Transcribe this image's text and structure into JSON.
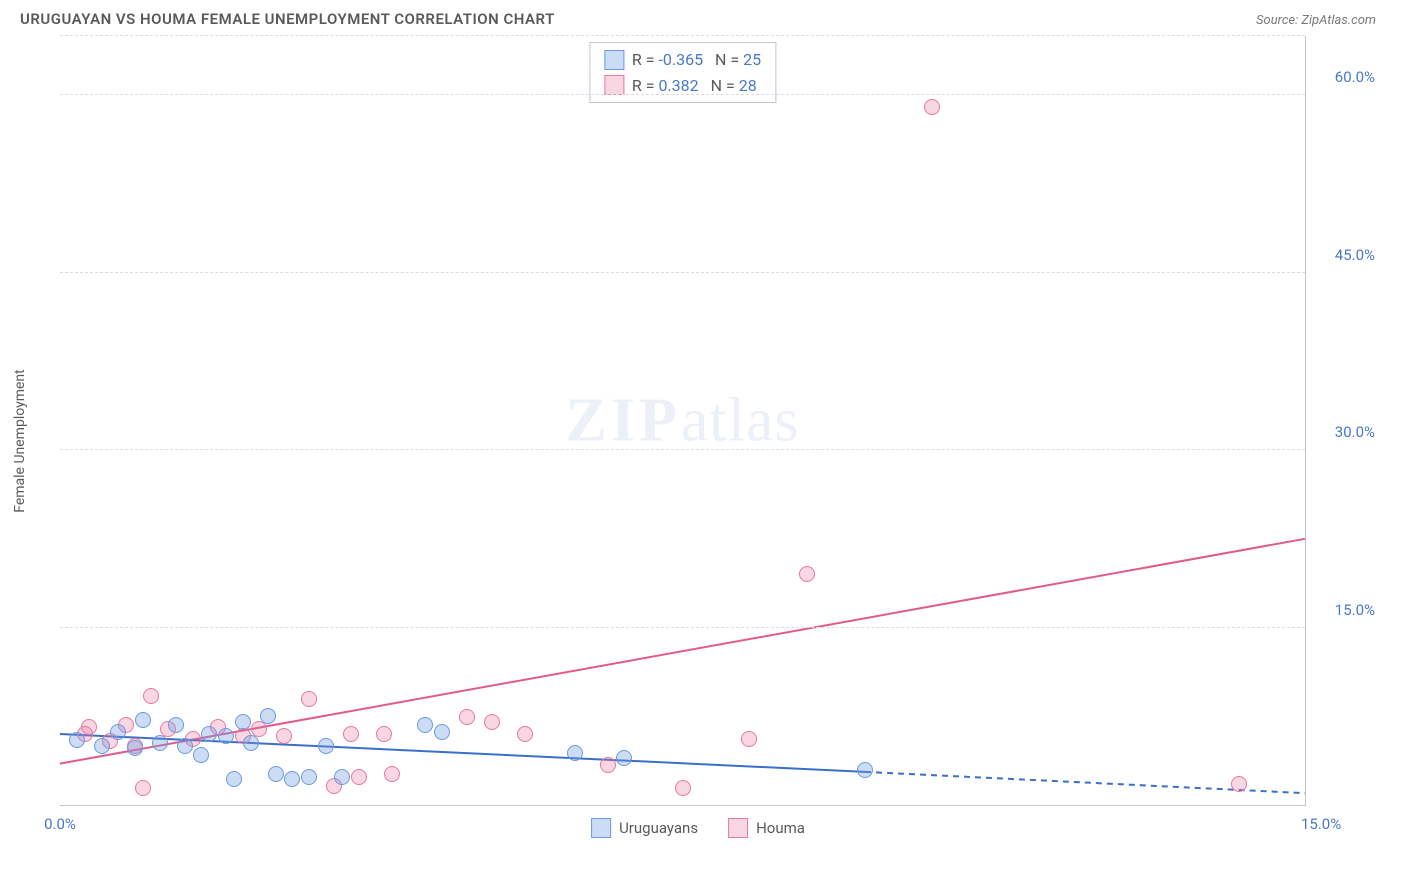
{
  "title": "URUGUAYAN VS HOUMA FEMALE UNEMPLOYMENT CORRELATION CHART",
  "source_label": "Source: ZipAtlas.com",
  "y_axis_title": "Female Unemployment",
  "watermark": {
    "bold": "ZIP",
    "thin": "atlas"
  },
  "colors": {
    "series_a_fill": "rgba(108,154,224,0.35)",
    "series_a_stroke": "#6c9ae0",
    "series_b_fill": "rgba(232,120,160,0.30)",
    "series_b_stroke": "#e878a0",
    "line_a": "#3a6fc9",
    "line_b": "#e05a8a",
    "axis_label": "#4a78c8",
    "grid": "#d7dde4"
  },
  "axes": {
    "x_min": 0,
    "x_max": 15,
    "y_min": 0,
    "y_max": 65,
    "x_ticks": [
      {
        "v": 0,
        "label": "0.0%"
      },
      {
        "v": 15,
        "label": "15.0%"
      }
    ],
    "y_ticks": [
      {
        "v": 15,
        "label": "15.0%"
      },
      {
        "v": 30,
        "label": "30.0%"
      },
      {
        "v": 45,
        "label": "45.0%"
      },
      {
        "v": 60,
        "label": "60.0%"
      }
    ],
    "y_grid": [
      15,
      30,
      45,
      60,
      65
    ]
  },
  "legend_top": {
    "rows": [
      {
        "swatch": "a",
        "r_label": "R =",
        "r": "-0.365",
        "n_label": "N =",
        "n": "25"
      },
      {
        "swatch": "b",
        "r_label": "R =",
        "r": "0.382",
        "n_label": "N =",
        "n": "28"
      }
    ]
  },
  "legend_bottom": {
    "items": [
      {
        "swatch": "a",
        "label": "Uruguayans"
      },
      {
        "swatch": "b",
        "label": "Houma"
      }
    ]
  },
  "point_radius": 8,
  "series_a_points": [
    {
      "x": 0.2,
      "y": 5.5
    },
    {
      "x": 0.5,
      "y": 5.0
    },
    {
      "x": 0.7,
      "y": 6.2
    },
    {
      "x": 0.9,
      "y": 4.8
    },
    {
      "x": 1.0,
      "y": 7.2
    },
    {
      "x": 1.2,
      "y": 5.2
    },
    {
      "x": 1.4,
      "y": 6.8
    },
    {
      "x": 1.5,
      "y": 5.0
    },
    {
      "x": 1.7,
      "y": 4.2
    },
    {
      "x": 1.8,
      "y": 6.0
    },
    {
      "x": 2.0,
      "y": 5.8
    },
    {
      "x": 2.1,
      "y": 2.2
    },
    {
      "x": 2.2,
      "y": 7.0
    },
    {
      "x": 2.3,
      "y": 5.2
    },
    {
      "x": 2.5,
      "y": 7.5
    },
    {
      "x": 2.6,
      "y": 2.6
    },
    {
      "x": 2.8,
      "y": 2.2
    },
    {
      "x": 3.0,
      "y": 2.4
    },
    {
      "x": 3.2,
      "y": 5.0
    },
    {
      "x": 3.4,
      "y": 2.4
    },
    {
      "x": 4.4,
      "y": 6.8
    },
    {
      "x": 4.6,
      "y": 6.2
    },
    {
      "x": 6.2,
      "y": 4.4
    },
    {
      "x": 6.8,
      "y": 4.0
    },
    {
      "x": 9.7,
      "y": 3.0
    }
  ],
  "series_b_points": [
    {
      "x": 0.3,
      "y": 6.0
    },
    {
      "x": 0.35,
      "y": 6.6
    },
    {
      "x": 0.6,
      "y": 5.4
    },
    {
      "x": 0.8,
      "y": 6.8
    },
    {
      "x": 0.9,
      "y": 5.0
    },
    {
      "x": 1.0,
      "y": 1.4
    },
    {
      "x": 1.1,
      "y": 9.2
    },
    {
      "x": 1.3,
      "y": 6.4
    },
    {
      "x": 1.6,
      "y": 5.6
    },
    {
      "x": 1.9,
      "y": 6.6
    },
    {
      "x": 2.2,
      "y": 5.8
    },
    {
      "x": 2.4,
      "y": 6.4
    },
    {
      "x": 2.7,
      "y": 5.8
    },
    {
      "x": 3.0,
      "y": 9.0
    },
    {
      "x": 3.3,
      "y": 1.6
    },
    {
      "x": 3.5,
      "y": 6.0
    },
    {
      "x": 3.6,
      "y": 2.4
    },
    {
      "x": 3.9,
      "y": 6.0
    },
    {
      "x": 4.0,
      "y": 2.6
    },
    {
      "x": 4.9,
      "y": 7.4
    },
    {
      "x": 5.2,
      "y": 7.0
    },
    {
      "x": 5.6,
      "y": 6.0
    },
    {
      "x": 6.6,
      "y": 3.4
    },
    {
      "x": 7.5,
      "y": 1.4
    },
    {
      "x": 8.3,
      "y": 5.6
    },
    {
      "x": 9.0,
      "y": 19.5
    },
    {
      "x": 10.5,
      "y": 59.0
    },
    {
      "x": 14.2,
      "y": 1.8
    }
  ],
  "trend_lines": {
    "a": {
      "solid": {
        "x1": 0,
        "y1": 6.0,
        "x2": 9.7,
        "y2": 2.8
      },
      "dashed": {
        "x1": 9.7,
        "y1": 2.8,
        "x2": 15,
        "y2": 1.0
      }
    },
    "b": {
      "x1": 0,
      "y1": 3.5,
      "x2": 15,
      "y2": 22.5
    }
  }
}
